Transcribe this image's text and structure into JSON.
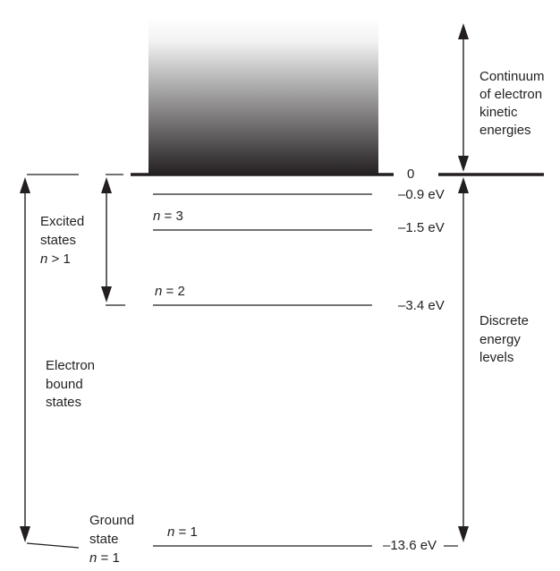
{
  "diagram": {
    "continuum_label": [
      "Continuum",
      "of electron",
      "kinetic",
      "energies"
    ],
    "discrete_label": [
      "Discrete",
      "energy",
      "levels"
    ],
    "excited_label": [
      "Excited",
      "states"
    ],
    "excited_condition": {
      "var": "n",
      "op": " > 1"
    },
    "bound_label": [
      "Electron",
      "bound",
      "states"
    ],
    "ground_label": [
      "Ground",
      "state"
    ],
    "ground_condition": {
      "var": "n",
      "op": " = 1"
    },
    "zero_label": "0",
    "levels": [
      {
        "name": "level-n1",
        "n_var": "n",
        "n_text": " = 1",
        "energy": "–13.6 eV",
        "energy_value": -13.6
      },
      {
        "name": "level-n2",
        "n_var": "n",
        "n_text": " = 2",
        "energy": "–3.4 eV",
        "energy_value": -3.4
      },
      {
        "name": "level-n3",
        "n_var": "n",
        "n_text": " = 3",
        "energy": "–1.5 eV",
        "energy_value": -1.5
      },
      {
        "name": "level-n4",
        "energy": "–0.9 eV",
        "energy_value": -0.9
      }
    ],
    "colors": {
      "ink": "#231f20",
      "continuum_top": "#ffffff",
      "continuum_bottom": "#231f20"
    }
  }
}
